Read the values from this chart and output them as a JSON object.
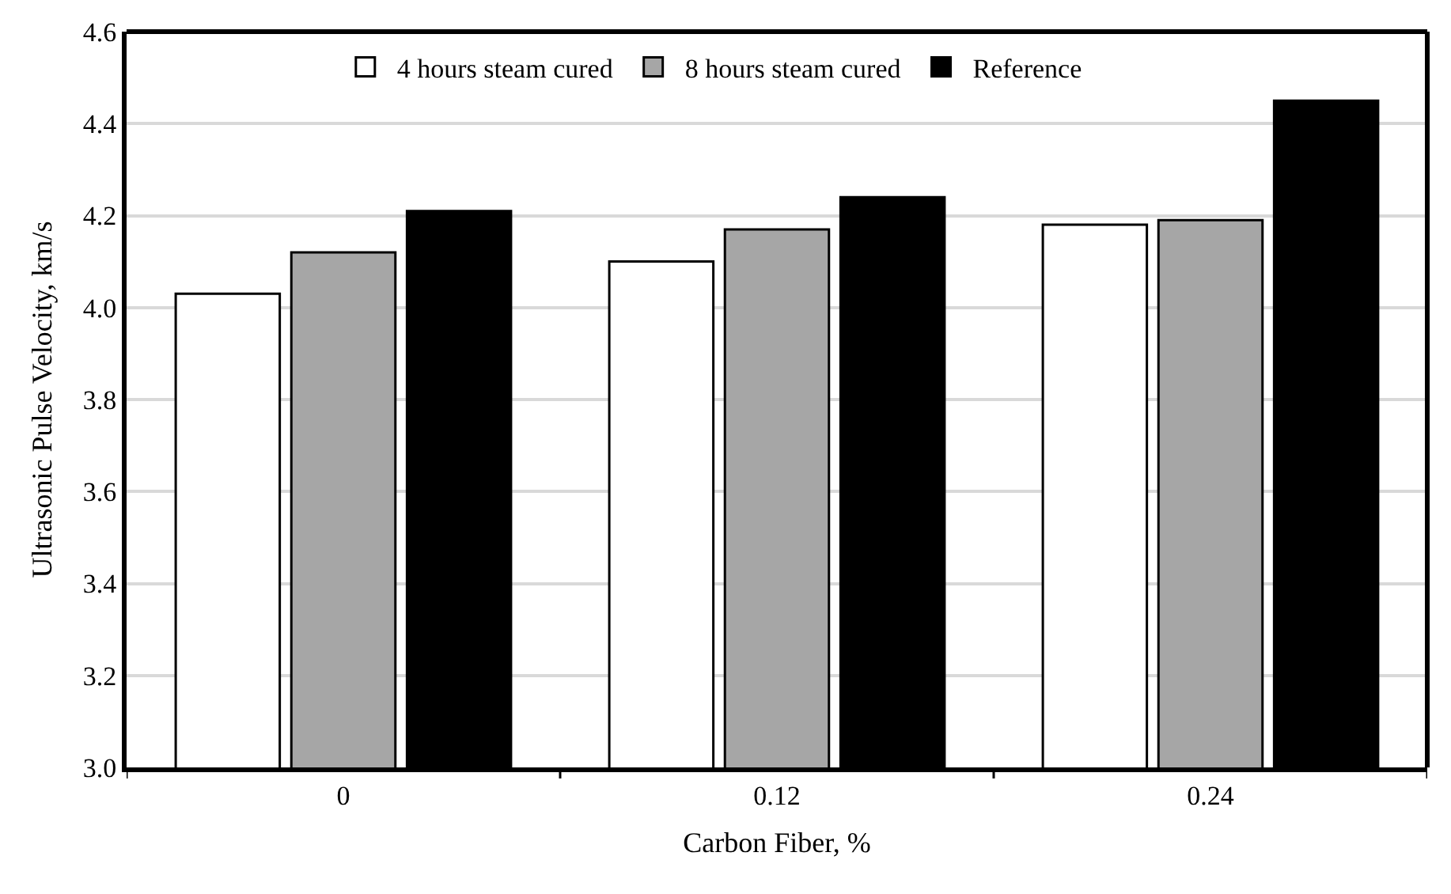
{
  "chart_data": {
    "type": "bar",
    "xlabel": "Carbon Fiber, %",
    "ylabel": "Ultrasonic Pulse Velocity, km/s",
    "categories": [
      "0",
      "0.12",
      "0.24"
    ],
    "series": [
      {
        "name": "4 hours steam cured",
        "color": "#ffffff",
        "values": [
          4.03,
          4.1,
          4.18
        ]
      },
      {
        "name": "8 hours steam cured",
        "color": "#a6a6a6",
        "values": [
          4.12,
          4.17,
          4.19
        ]
      },
      {
        "name": "Reference",
        "color": "#000000",
        "values": [
          4.21,
          4.24,
          4.45
        ]
      }
    ],
    "ylim": [
      3.0,
      4.6
    ],
    "yticks": [
      {
        "value": 3.0,
        "label": "3.0"
      },
      {
        "value": 3.2,
        "label": "3.2"
      },
      {
        "value": 3.4,
        "label": "3.4"
      },
      {
        "value": 3.6,
        "label": "3.6"
      },
      {
        "value": 3.8,
        "label": "3.8"
      },
      {
        "value": 4.0,
        "label": "4.0"
      },
      {
        "value": 4.2,
        "label": "4.2"
      },
      {
        "value": 4.4,
        "label": "4.4"
      },
      {
        "value": 4.6,
        "label": "4.6"
      }
    ],
    "grid": "y",
    "legend": "top"
  }
}
